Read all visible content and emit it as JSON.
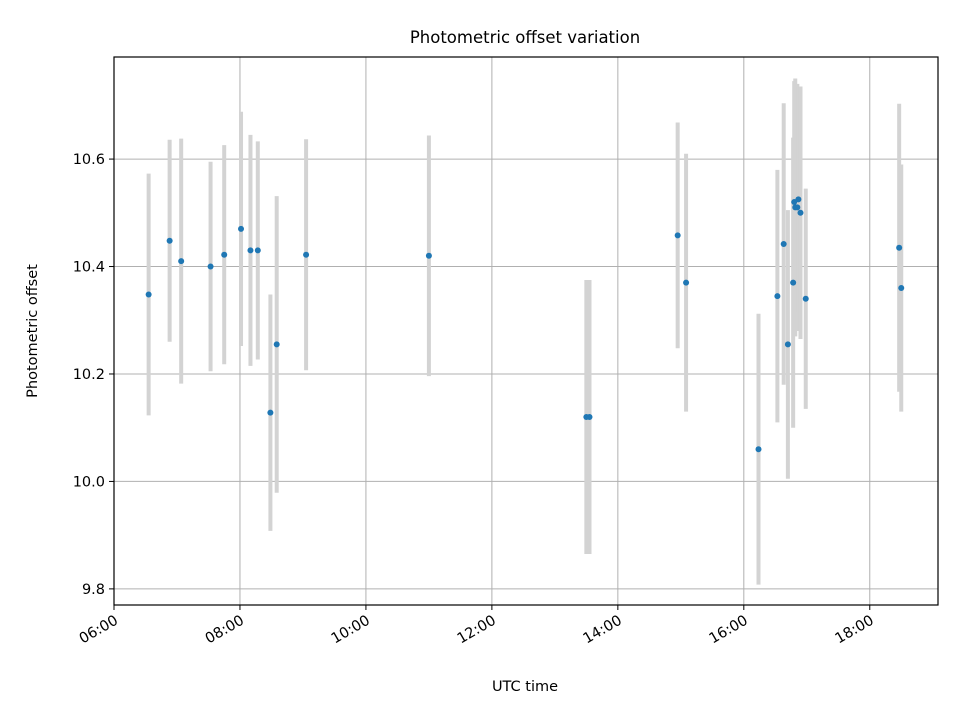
{
  "chart_data": {
    "type": "scatter",
    "title": "Photometric offset variation",
    "xlabel": "UTC time",
    "ylabel": "Photometric offset",
    "xlim": [
      "06:00",
      "19:05"
    ],
    "ylim": [
      9.77,
      10.79
    ],
    "x_ticks": [
      "06:00",
      "08:00",
      "10:00",
      "12:00",
      "14:00",
      "16:00",
      "18:00"
    ],
    "y_ticks": [
      "9.8",
      "10.0",
      "10.2",
      "10.4",
      "10.6"
    ],
    "grid": true,
    "colors": {
      "point": "#1f77b4",
      "errorbar": "#d3d3d3",
      "grid": "#b0b0b0"
    },
    "points": [
      {
        "x": "06:33",
        "y": 10.348,
        "err": 0.225
      },
      {
        "x": "06:53",
        "y": 10.448,
        "err": 0.188
      },
      {
        "x": "07:04",
        "y": 10.41,
        "err": 0.228
      },
      {
        "x": "07:32",
        "y": 10.4,
        "err": 0.195
      },
      {
        "x": "07:45",
        "y": 10.422,
        "err": 0.204
      },
      {
        "x": "08:01",
        "y": 10.47,
        "err": 0.218
      },
      {
        "x": "08:10",
        "y": 10.43,
        "err": 0.215
      },
      {
        "x": "08:17",
        "y": 10.43,
        "err": 0.203
      },
      {
        "x": "08:29",
        "y": 10.128,
        "err": 0.22
      },
      {
        "x": "08:35",
        "y": 10.255,
        "err": 0.276
      },
      {
        "x": "09:03",
        "y": 10.422,
        "err": 0.215
      },
      {
        "x": "11:00",
        "y": 10.42,
        "err": 0.224
      },
      {
        "x": "13:30",
        "y": 10.12,
        "err": 0.255
      },
      {
        "x": "13:33",
        "y": 10.12,
        "err": 0.255
      },
      {
        "x": "14:57",
        "y": 10.458,
        "err": 0.21
      },
      {
        "x": "15:05",
        "y": 10.37,
        "err": 0.24
      },
      {
        "x": "16:14",
        "y": 10.06,
        "err": 0.252
      },
      {
        "x": "16:32",
        "y": 10.345,
        "err": 0.235
      },
      {
        "x": "16:38",
        "y": 10.442,
        "err": 0.262
      },
      {
        "x": "16:42",
        "y": 10.255,
        "err": 0.25
      },
      {
        "x": "16:47",
        "y": 10.37,
        "err": 0.27
      },
      {
        "x": "16:48",
        "y": 10.52,
        "err": 0.225
      },
      {
        "x": "16:49",
        "y": 10.51,
        "err": 0.24
      },
      {
        "x": "16:51",
        "y": 10.51,
        "err": 0.23
      },
      {
        "x": "16:52",
        "y": 10.525,
        "err": 0.21
      },
      {
        "x": "16:54",
        "y": 10.5,
        "err": 0.235
      },
      {
        "x": "16:59",
        "y": 10.34,
        "err": 0.205
      },
      {
        "x": "18:28",
        "y": 10.435,
        "err": 0.268
      },
      {
        "x": "18:30",
        "y": 10.36,
        "err": 0.23
      }
    ]
  }
}
